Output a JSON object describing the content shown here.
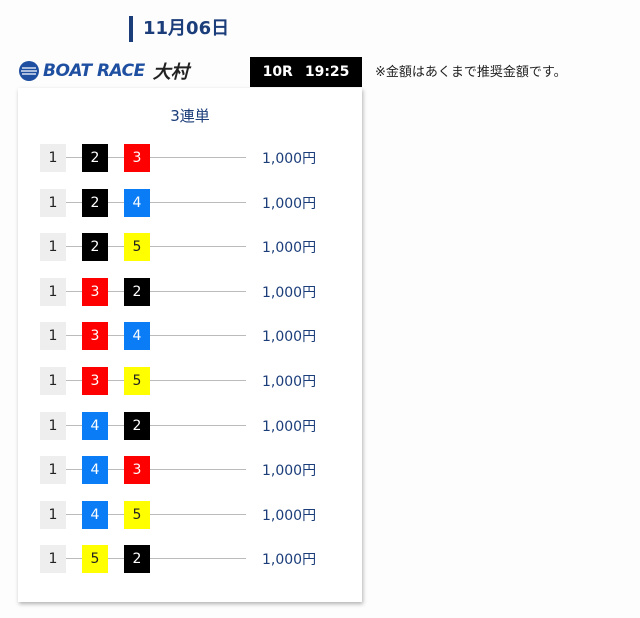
{
  "date": "11月06日",
  "logo": {
    "text": "BOAT RACE",
    "venue": "大村"
  },
  "race": {
    "number": "10R",
    "time": "19:25"
  },
  "note": "※金額はあくまで推奨金額です。",
  "bet_type": "3連単",
  "colors": {
    "1": "#eeeeee",
    "2": "#000000",
    "3": "#ff0000",
    "4": "#0a7cf5",
    "5": "#ffff00"
  },
  "rows": [
    {
      "combo": [
        "1",
        "2",
        "3"
      ],
      "amount": "1,000円"
    },
    {
      "combo": [
        "1",
        "2",
        "4"
      ],
      "amount": "1,000円"
    },
    {
      "combo": [
        "1",
        "2",
        "5"
      ],
      "amount": "1,000円"
    },
    {
      "combo": [
        "1",
        "3",
        "2"
      ],
      "amount": "1,000円"
    },
    {
      "combo": [
        "1",
        "3",
        "4"
      ],
      "amount": "1,000円"
    },
    {
      "combo": [
        "1",
        "3",
        "5"
      ],
      "amount": "1,000円"
    },
    {
      "combo": [
        "1",
        "4",
        "2"
      ],
      "amount": "1,000円"
    },
    {
      "combo": [
        "1",
        "4",
        "3"
      ],
      "amount": "1,000円"
    },
    {
      "combo": [
        "1",
        "4",
        "5"
      ],
      "amount": "1,000円"
    },
    {
      "combo": [
        "1",
        "5",
        "2"
      ],
      "amount": "1,000円"
    }
  ]
}
